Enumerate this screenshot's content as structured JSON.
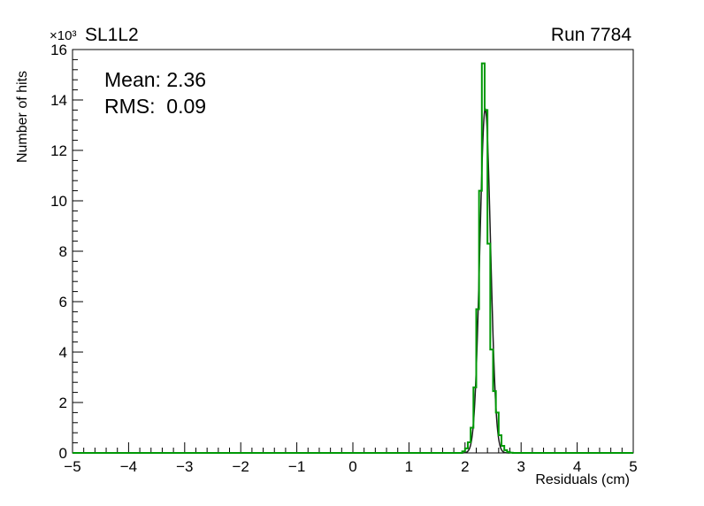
{
  "header": {
    "multiplier": "×10³",
    "title": "SL1L2",
    "run": "Run 7784"
  },
  "stats": {
    "mean": "Mean: 2.36",
    "rms": "RMS:  0.09"
  },
  "axes": {
    "xlabel": "Residuals (cm)",
    "ylabel": "Number of hits"
  },
  "chart_data": {
    "type": "bar",
    "subtype": "step-histogram",
    "title": "SL1L2",
    "run_label": "Run 7784",
    "xlabel": "Residuals (cm)",
    "ylabel": "Number of hits",
    "y_axis_multiplier": "×10³",
    "xlim": [
      -5,
      5
    ],
    "ylim": [
      0,
      16000
    ],
    "grid": false,
    "legend": "none",
    "x_tick_values": [
      -5,
      -4,
      -3,
      -2,
      -1,
      0,
      1,
      2,
      3,
      4,
      5
    ],
    "x_tick_labels": [
      "−5",
      "−4",
      "−3",
      "−2",
      "−1",
      "0",
      "1",
      "2",
      "3",
      "4",
      "5"
    ],
    "y_tick_values": [
      0,
      2000,
      4000,
      6000,
      8000,
      10000,
      12000,
      14000,
      16000
    ],
    "y_tick_labels": [
      "0",
      "2",
      "4",
      "6",
      "8",
      "10",
      "12",
      "14",
      "16"
    ],
    "x_minor_step": 0.2,
    "y_minor_step": 400,
    "stats": {
      "mean": 2.36,
      "rms": 0.09
    },
    "series": [
      {
        "name": "overlay-curve",
        "style": "gaussian",
        "color": "#1a1a1a",
        "line_width": 1.5,
        "mean": 2.36,
        "sigma": 0.095,
        "amplitude": 13650,
        "range": [
          1.98,
          2.8
        ]
      },
      {
        "name": "residuals-histogram",
        "style": "step",
        "color": "#009906",
        "line_width": 2,
        "bin_start": 1.95,
        "bin_width": 0.05,
        "counts": [
          60,
          180,
          420,
          1000,
          2600,
          5700,
          10400,
          15450,
          13600,
          8300,
          4100,
          2450,
          1600,
          700,
          280,
          110,
          40,
          10
        ]
      }
    ]
  }
}
